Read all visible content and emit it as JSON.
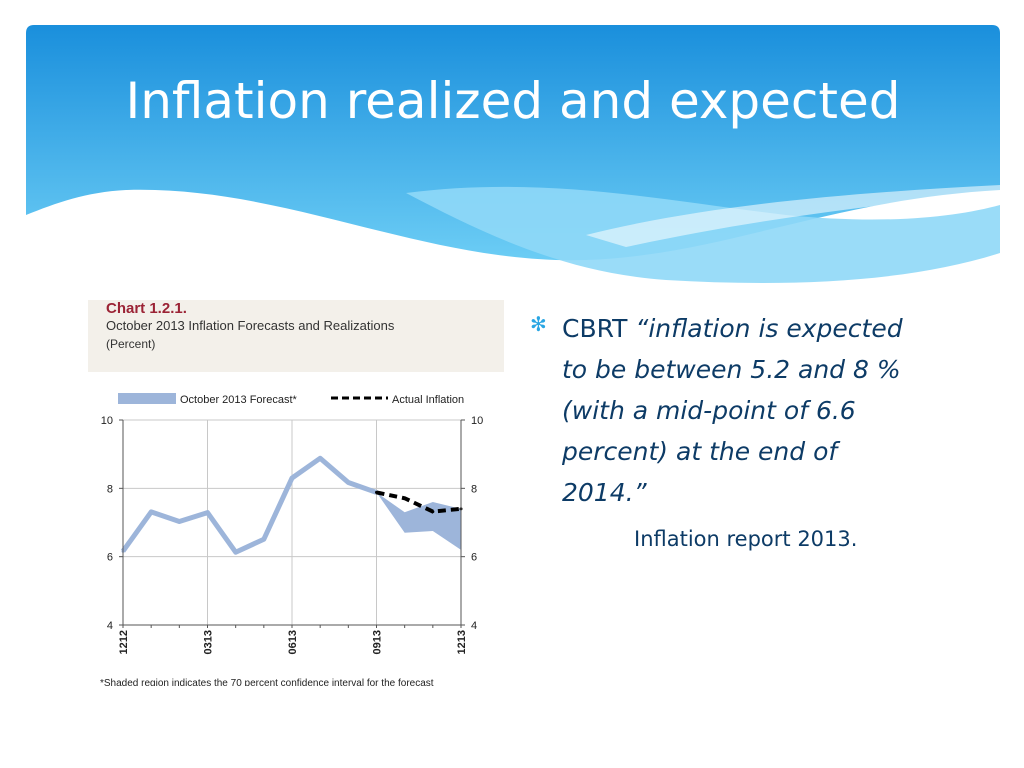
{
  "slide": {
    "title": "Inflation realized and expected",
    "colors": {
      "header_top": "#1a8fdc",
      "header_bottom": "#6ccdf5",
      "text": "#0d3b66",
      "bullet": "#2aa6e3"
    }
  },
  "bullet": {
    "icon": "asterisk-bullet-icon",
    "lead": "CBRT ",
    "quote": "“inflation is expected to be  between 5.2 and 8 % (with a mid-point of 6.6  percent) at the end of 2014.”",
    "citation": "Inflation report 2013."
  },
  "chart_panel": {
    "number": "Chart 1.2.1.",
    "title": "October 2013 Inflation Forecasts and Realizations",
    "unit": "(Percent)",
    "footnote": "*Shaded region indicates the 70 percent confidence interval for the forecast"
  },
  "chart_data": {
    "type": "line",
    "title": "October 2013 Inflation Forecasts and Realizations",
    "ylabel": "(Percent)",
    "ylim": [
      4,
      10
    ],
    "yticks": [
      4,
      6,
      8,
      10
    ],
    "x": [
      "1212",
      "0113",
      "0213",
      "0313",
      "0413",
      "0513",
      "0613",
      "0713",
      "0813",
      "0913",
      "1013",
      "1113",
      "1213"
    ],
    "xtick_labels": [
      "1212",
      "0313",
      "0613",
      "0913",
      "1213"
    ],
    "legend": [
      "October 2013 Forecast*",
      "Actual Inflation"
    ],
    "legend_position": "top",
    "grid": true,
    "series": [
      {
        "name": "October 2013 Forecast*",
        "kind": "band",
        "color": "#9db5da",
        "history": [
          6.16,
          7.31,
          7.03,
          7.29,
          6.13,
          6.51,
          8.3,
          8.88,
          8.17,
          7.88
        ],
        "band_x": [
          "0913",
          "1013",
          "1113",
          "1213"
        ],
        "band_upper": [
          7.88,
          7.3,
          7.6,
          7.4
        ],
        "band_lower": [
          7.88,
          6.7,
          6.75,
          6.2
        ]
      },
      {
        "name": "Actual Inflation",
        "kind": "dashed-line",
        "color": "#000000",
        "x": [
          "0913",
          "1013",
          "1113",
          "1213"
        ],
        "values": [
          7.88,
          7.71,
          7.32,
          7.4
        ]
      }
    ]
  }
}
